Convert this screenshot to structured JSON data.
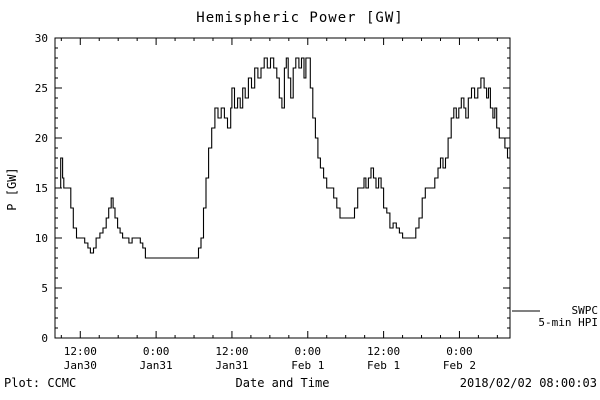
{
  "title": "Hemispheric Power [GW]",
  "footer": {
    "left": "Plot: CCMC",
    "center": "Date and Time",
    "right": "2018/02/02 08:00:03"
  },
  "legend": {
    "lines": [
      "SWPC",
      "5-min HPI"
    ]
  },
  "chart_data": {
    "type": "line",
    "style": "step",
    "title": "Hemispheric Power [GW]",
    "xlabel": "Date and Time",
    "ylabel": "P [GW]",
    "ylim": [
      0,
      30
    ],
    "yticks": [
      0,
      5,
      10,
      15,
      20,
      25,
      30
    ],
    "x_unit": "hours since Jan 30 00:00",
    "xlim_hours": [
      8,
      80
    ],
    "xticks": [
      {
        "t": 12,
        "time": "12:00",
        "date": "Jan30"
      },
      {
        "t": 24,
        "time": "0:00",
        "date": "Jan31"
      },
      {
        "t": 36,
        "time": "12:00",
        "date": "Jan31"
      },
      {
        "t": 48,
        "time": "0:00",
        "date": "Feb 1"
      },
      {
        "t": 60,
        "time": "12:00",
        "date": "Feb 1"
      },
      {
        "t": 72,
        "time": "0:00",
        "date": "Feb 2"
      }
    ],
    "grid": false,
    "legend_position": "right-outside",
    "line_color": "#000000",
    "series": [
      {
        "name": "SWPC 5-min HPI",
        "points": [
          [
            8,
            15
          ],
          [
            8.6,
            15
          ],
          [
            8.9,
            18
          ],
          [
            9.2,
            16
          ],
          [
            9.4,
            15
          ],
          [
            10.1,
            15
          ],
          [
            10.5,
            13
          ],
          [
            10.9,
            11
          ],
          [
            11.4,
            10
          ],
          [
            12.2,
            10
          ],
          [
            12.7,
            9.5
          ],
          [
            13.2,
            9
          ],
          [
            13.6,
            8.5
          ],
          [
            14.1,
            9
          ],
          [
            14.5,
            10
          ],
          [
            15.1,
            10.5
          ],
          [
            15.6,
            11
          ],
          [
            16.1,
            12
          ],
          [
            16.5,
            13
          ],
          [
            16.9,
            14
          ],
          [
            17.2,
            13
          ],
          [
            17.5,
            12
          ],
          [
            17.9,
            11
          ],
          [
            18.3,
            10.5
          ],
          [
            18.7,
            10
          ],
          [
            19.2,
            10
          ],
          [
            19.7,
            9.5
          ],
          [
            20.2,
            10
          ],
          [
            20.9,
            10
          ],
          [
            21.5,
            9.5
          ],
          [
            21.9,
            9
          ],
          [
            22.3,
            8
          ],
          [
            30.2,
            8
          ],
          [
            30.7,
            9
          ],
          [
            31.1,
            10
          ],
          [
            31.5,
            13
          ],
          [
            31.9,
            16
          ],
          [
            32.3,
            19
          ],
          [
            32.8,
            21
          ],
          [
            33.3,
            23
          ],
          [
            33.8,
            22
          ],
          [
            34.3,
            23
          ],
          [
            34.8,
            22
          ],
          [
            35.3,
            21
          ],
          [
            35.8,
            23
          ],
          [
            36,
            25
          ],
          [
            36.4,
            23
          ],
          [
            36.9,
            24
          ],
          [
            37.3,
            23
          ],
          [
            37.7,
            25
          ],
          [
            38.1,
            24
          ],
          [
            38.6,
            26
          ],
          [
            39.1,
            25
          ],
          [
            39.6,
            27
          ],
          [
            40.1,
            26
          ],
          [
            40.6,
            27
          ],
          [
            41.1,
            28
          ],
          [
            41.6,
            27
          ],
          [
            42.1,
            28
          ],
          [
            42.6,
            27
          ],
          [
            43.1,
            26
          ],
          [
            43.5,
            24
          ],
          [
            43.9,
            23
          ],
          [
            44.3,
            27
          ],
          [
            44.6,
            28
          ],
          [
            44.9,
            26
          ],
          [
            45.3,
            24
          ],
          [
            45.7,
            27
          ],
          [
            46.1,
            28
          ],
          [
            46.6,
            27
          ],
          [
            47,
            28
          ],
          [
            47.4,
            26
          ],
          [
            47.7,
            28
          ],
          [
            48.1,
            28
          ],
          [
            48.4,
            25
          ],
          [
            48.8,
            22
          ],
          [
            49.2,
            20
          ],
          [
            49.6,
            18
          ],
          [
            50,
            17
          ],
          [
            50.5,
            16
          ],
          [
            51,
            15
          ],
          [
            51.6,
            15
          ],
          [
            52.1,
            14
          ],
          [
            52.6,
            13
          ],
          [
            53.1,
            12
          ],
          [
            54.9,
            12
          ],
          [
            55.4,
            13
          ],
          [
            55.9,
            15
          ],
          [
            56.4,
            15
          ],
          [
            56.9,
            16
          ],
          [
            57.2,
            15
          ],
          [
            57.6,
            16
          ],
          [
            58,
            17
          ],
          [
            58.4,
            16
          ],
          [
            58.8,
            15
          ],
          [
            59.2,
            16
          ],
          [
            59.6,
            15
          ],
          [
            60,
            13
          ],
          [
            60.5,
            12.5
          ],
          [
            61,
            11
          ],
          [
            61.5,
            11.5
          ],
          [
            62,
            11
          ],
          [
            62.5,
            10.5
          ],
          [
            63,
            10
          ],
          [
            64.6,
            10
          ],
          [
            65.1,
            11
          ],
          [
            65.6,
            12
          ],
          [
            66.1,
            14
          ],
          [
            66.6,
            15
          ],
          [
            67.6,
            15
          ],
          [
            68.1,
            16
          ],
          [
            68.6,
            17
          ],
          [
            69,
            18
          ],
          [
            69.4,
            17
          ],
          [
            69.8,
            18
          ],
          [
            70.2,
            20
          ],
          [
            70.7,
            22
          ],
          [
            71.1,
            23
          ],
          [
            71.5,
            22
          ],
          [
            71.9,
            23
          ],
          [
            72.3,
            24
          ],
          [
            72.7,
            23
          ],
          [
            73,
            22
          ],
          [
            73.4,
            24
          ],
          [
            73.9,
            25
          ],
          [
            74.4,
            24
          ],
          [
            74.9,
            25
          ],
          [
            75.4,
            26
          ],
          [
            75.9,
            25
          ],
          [
            76.3,
            24
          ],
          [
            76.6,
            25
          ],
          [
            76.9,
            23
          ],
          [
            77.3,
            22
          ],
          [
            77.6,
            23
          ],
          [
            77.9,
            21
          ],
          [
            78.3,
            20
          ],
          [
            78.8,
            20
          ],
          [
            79.2,
            19
          ],
          [
            79.6,
            18
          ],
          [
            80,
            18
          ]
        ]
      }
    ]
  }
}
